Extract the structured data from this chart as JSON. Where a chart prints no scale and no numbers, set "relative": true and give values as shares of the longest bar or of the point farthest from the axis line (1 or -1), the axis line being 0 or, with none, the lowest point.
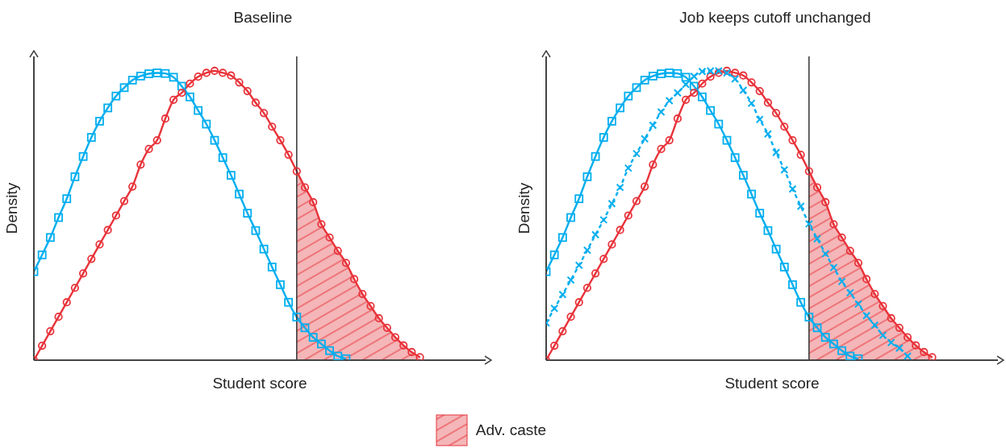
{
  "chart_data": [
    {
      "type": "line",
      "title": "Baseline",
      "xlabel": "Student score",
      "ylabel": "Density",
      "relative": true,
      "legend": "bottom",
      "categories": [
        null,
        null,
        null,
        null,
        null,
        null,
        null,
        null,
        null,
        null,
        null,
        null,
        null,
        null,
        null,
        null,
        null,
        null,
        null,
        null,
        null,
        null,
        null,
        null,
        null,
        null,
        null,
        null,
        null,
        null,
        null,
        null,
        null,
        null,
        null,
        null,
        null,
        null,
        null,
        null,
        null,
        null,
        null,
        null,
        null,
        null,
        null,
        null,
        null,
        null,
        null,
        null,
        null,
        null,
        null,
        null
      ],
      "series": [
        {
          "type": "area",
          "name": "Adv. caste",
          "color": "#f4b6b8",
          "values": [
            null,
            null,
            null,
            null,
            null,
            null,
            null,
            null,
            null,
            null,
            null,
            null,
            null,
            null,
            null,
            null,
            null,
            null,
            null,
            null,
            null,
            null,
            null,
            null,
            null,
            null,
            null,
            null,
            null,
            null,
            null,
            null,
            0.653,
            0.597,
            0.546,
            0.47,
            0.424,
            0.378,
            0.336,
            0.28,
            0.229,
            0.187,
            0.145,
            0.112,
            0.079,
            0.051,
            0.028,
            0.01,
            null,
            null,
            null,
            null,
            null,
            null,
            null,
            null
          ]
        },
        {
          "type": "line",
          "color": "#00aeef",
          "marker": "square",
          "line_style": "solid",
          "values": [
            0.306,
            0.364,
            0.424,
            0.493,
            0.558,
            0.634,
            0.704,
            0.77,
            0.826,
            0.872,
            0.913,
            0.942,
            0.968,
            0.982,
            0.99,
            0.993,
            0.991,
            0.978,
            0.947,
            0.91,
            0.863,
            0.816,
            0.76,
            0.7,
            0.639,
            0.574,
            0.508,
            0.448,
            0.384,
            0.322,
            0.261,
            0.2,
            0.149,
            0.112,
            0.079,
            0.056,
            0.033,
            0.014,
            0.005,
            null,
            null,
            null,
            null,
            null,
            null,
            null,
            null,
            null,
            null,
            null,
            null,
            null,
            null,
            null,
            null,
            null
          ]
        },
        {
          "type": "line",
          "color": "#e8333a",
          "marker": "circle",
          "line_style": "solid",
          "values": [
            0,
            0.05,
            0.1,
            0.15,
            0.2,
            0.25,
            0.3,
            0.35,
            0.4,
            0.45,
            0.5,
            0.55,
            0.6,
            0.676,
            0.73,
            0.76,
            0.835,
            0.9,
            0.924,
            0.956,
            0.98,
            0.993,
            1,
            0.993,
            0.984,
            0.96,
            0.93,
            0.89,
            0.854,
            0.807,
            0.76,
            0.71,
            0.653,
            0.597,
            0.546,
            0.47,
            0.424,
            0.378,
            0.336,
            0.28,
            0.229,
            0.187,
            0.145,
            0.112,
            0.079,
            0.051,
            0.028,
            0.01,
            null,
            null,
            null,
            null,
            null,
            null,
            null,
            null
          ]
        }
      ]
    },
    {
      "type": "line",
      "title": "Job keeps cutoff unchanged",
      "xlabel": "Student score",
      "ylabel": "Density",
      "relative": true,
      "categories": [
        null,
        null,
        null,
        null,
        null,
        null,
        null,
        null,
        null,
        null,
        null,
        null,
        null,
        null,
        null,
        null,
        null,
        null,
        null,
        null,
        null,
        null,
        null,
        null,
        null,
        null,
        null,
        null,
        null,
        null,
        null,
        null,
        null,
        null,
        null,
        null,
        null,
        null,
        null,
        null,
        null,
        null,
        null,
        null,
        null,
        null,
        null,
        null,
        null,
        null,
        null,
        null,
        null,
        null,
        null,
        null
      ],
      "series": [
        {
          "type": "area",
          "color": "#f4b6b8",
          "values": [
            null,
            null,
            null,
            null,
            null,
            null,
            null,
            null,
            null,
            null,
            null,
            null,
            null,
            null,
            null,
            null,
            null,
            null,
            null,
            null,
            null,
            null,
            null,
            null,
            null,
            null,
            null,
            null,
            null,
            null,
            null,
            null,
            0.653,
            0.597,
            0.546,
            0.47,
            0.424,
            0.378,
            0.336,
            0.28,
            0.229,
            0.187,
            0.145,
            0.112,
            0.079,
            0.051,
            0.028,
            0.01,
            null,
            null,
            null,
            null,
            null,
            null,
            null,
            null
          ]
        },
        {
          "type": "line",
          "color": "#00aeef",
          "marker": "square",
          "line_style": "solid",
          "values": [
            0.306,
            0.364,
            0.424,
            0.493,
            0.558,
            0.634,
            0.704,
            0.77,
            0.826,
            0.872,
            0.913,
            0.942,
            0.968,
            0.982,
            0.99,
            0.993,
            0.991,
            0.978,
            0.947,
            0.91,
            0.863,
            0.816,
            0.76,
            0.7,
            0.639,
            0.574,
            0.508,
            0.448,
            0.384,
            0.322,
            0.261,
            0.2,
            0.149,
            0.112,
            0.079,
            0.056,
            0.033,
            0.014,
            0.005,
            null,
            null,
            null,
            null,
            null,
            null,
            null,
            null,
            null,
            null,
            null,
            null,
            null,
            null,
            null,
            null,
            null
          ]
        },
        {
          "type": "line",
          "color": "#e8333a",
          "marker": "circle",
          "line_style": "solid",
          "values": [
            0,
            0.05,
            0.1,
            0.15,
            0.2,
            0.25,
            0.3,
            0.35,
            0.4,
            0.45,
            0.5,
            0.55,
            0.6,
            0.676,
            0.73,
            0.76,
            0.835,
            0.9,
            0.924,
            0.956,
            0.98,
            0.993,
            1,
            0.993,
            0.984,
            0.96,
            0.93,
            0.89,
            0.854,
            0.807,
            0.76,
            0.71,
            0.653,
            0.597,
            0.546,
            0.47,
            0.424,
            0.378,
            0.336,
            0.28,
            0.229,
            0.187,
            0.145,
            0.112,
            0.079,
            0.051,
            0.028,
            0.01,
            null,
            null,
            null,
            null,
            null,
            null,
            null,
            null
          ]
        },
        {
          "type": "line",
          "color": "#00aeef",
          "marker": "cross",
          "line_style": "dashed",
          "values": [
            0.129,
            0.179,
            0.227,
            0.277,
            0.328,
            0.38,
            0.434,
            0.485,
            0.541,
            0.597,
            0.664,
            0.714,
            0.765,
            0.812,
            0.858,
            0.897,
            0.924,
            0.953,
            0.981,
            0.998,
            1,
            1,
            0.993,
            0.972,
            0.933,
            0.888,
            0.832,
            0.782,
            0.718,
            0.658,
            0.592,
            0.532,
            0.471,
            0.42,
            0.368,
            0.32,
            0.272,
            0.233,
            0.194,
            0.154,
            0.121,
            0.086,
            0.061,
            0.042,
            0.014,
            null,
            null,
            null,
            null,
            null,
            null,
            null,
            null,
            null,
            null,
            null
          ]
        }
      ]
    }
  ]
}
